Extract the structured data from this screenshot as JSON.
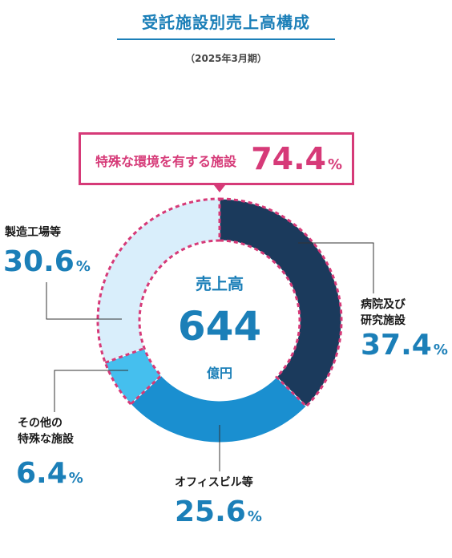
{
  "title": "受託施設別売上高構成",
  "subtitle": "（2025年3月期）",
  "callout": {
    "label": "特殊な環境を有する施設",
    "value": "74.4",
    "unit": "%"
  },
  "center": {
    "title": "売上高",
    "value": "644",
    "unit": "億円"
  },
  "segments": [
    {
      "label_lines": [
        "病院及び",
        "研究施設"
      ],
      "value": "37.4",
      "unit": "%"
    },
    {
      "label_lines": [
        "オフィスビル等"
      ],
      "value": "25.6",
      "unit": "%"
    },
    {
      "label_lines": [
        "その他の",
        "特殊な施設"
      ],
      "value": "6.4",
      "unit": "%"
    },
    {
      "label_lines": [
        "製造工場等"
      ],
      "value": "30.6",
      "unit": "%"
    }
  ],
  "colors": {
    "hospital": "#1b3a5c",
    "office": "#1a8fd0",
    "other_special": "#45bfee",
    "factory": "#d9eefb",
    "accent": "#d63a78",
    "text_blue": "#1b7fb8"
  },
  "chart_data": {
    "type": "pie",
    "title": "受託施設別売上高構成",
    "subtitle": "（2025年3月期）",
    "categories": [
      "病院及び研究施設",
      "オフィスビル等",
      "その他の特殊な施設",
      "製造工場等"
    ],
    "values": [
      37.4,
      25.6,
      6.4,
      30.6
    ],
    "total": 644,
    "total_unit": "億円",
    "donut": true,
    "highlight": {
      "categories": [
        "病院及び研究施設",
        "その他の特殊な施設",
        "製造工場等"
      ],
      "label": "特殊な環境を有する施設",
      "value": 74.4
    }
  }
}
